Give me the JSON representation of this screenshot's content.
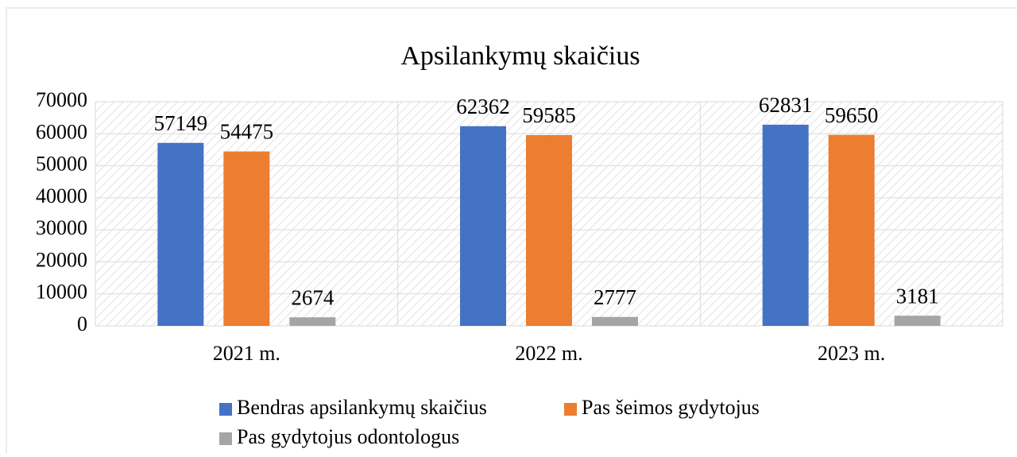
{
  "chart_data": {
    "type": "bar",
    "title": "Apsilankymų skaičius",
    "categories": [
      "2021 m.",
      "2022 m.",
      "2023 m."
    ],
    "series": [
      {
        "name": "Bendras apsilankymų skaičius",
        "color": "#4472c4",
        "values": [
          57149,
          62362,
          62831
        ]
      },
      {
        "name": "Pas šeimos gydytojus",
        "color": "#ed7d31",
        "values": [
          54475,
          59585,
          59650
        ]
      },
      {
        "name": "Pas gydytojus odontologus",
        "color": "#a5a5a5",
        "values": [
          2674,
          2777,
          3181
        ]
      }
    ],
    "ylim": [
      0,
      70000
    ],
    "yticks": [
      0,
      10000,
      20000,
      30000,
      40000,
      50000,
      60000,
      70000
    ],
    "grid": true,
    "legend": "bottom"
  }
}
